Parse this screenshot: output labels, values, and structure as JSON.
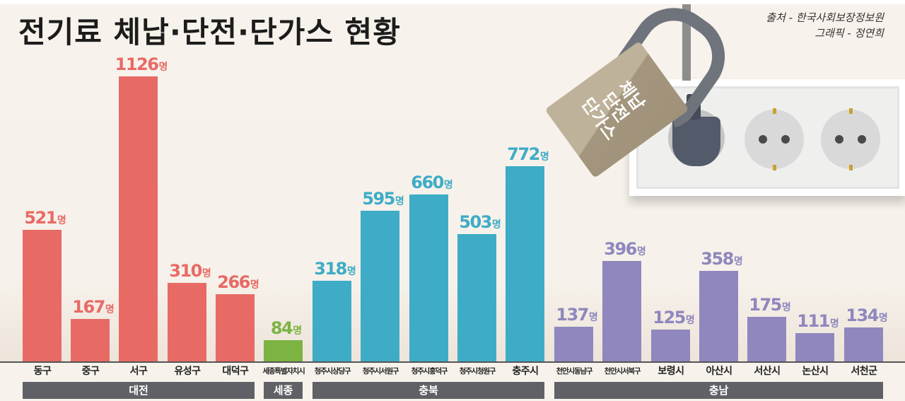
{
  "title": "전기료 체납·단전·단가스 현황",
  "credits": {
    "source": "출처 - 한국사회보장정보원",
    "graphic": "그래픽 - 정연희"
  },
  "illustration": {
    "lock_label": [
      "체납",
      "단전",
      "단가스"
    ]
  },
  "unit": "명",
  "colors": {
    "daejeon": "#e86a65",
    "sejong": "#7cb342",
    "chungbuk": "#3eacc6",
    "chungnam": "#8f87bd",
    "group_band": "#5f6166",
    "background": "#f7f2ec"
  },
  "groups": [
    {
      "name": "대전",
      "color_key": "daejeon"
    },
    {
      "name": "세종",
      "color_key": "sejong"
    },
    {
      "name": "충북",
      "color_key": "chungbuk"
    },
    {
      "name": "충남",
      "color_key": "chungnam"
    }
  ],
  "chart_data": {
    "type": "bar",
    "title": "전기료 체납·단전·단가스 현황",
    "xlabel": "",
    "ylabel": "명",
    "ylim": [
      0,
      1200
    ],
    "grid": false,
    "legend": "group bands below x-axis (대전, 세종, 충북, 충남)",
    "categories": [
      "동구",
      "중구",
      "서구",
      "유성구",
      "대덕구",
      "세종특별자치시",
      "청주시상당구",
      "청주시서원구",
      "청주시흥덕구",
      "청주시청원구",
      "충주시",
      "천안시동남구",
      "천안시서북구",
      "보령시",
      "아산시",
      "서산시",
      "논산시",
      "서천군"
    ],
    "values": [
      521,
      167,
      1126,
      310,
      266,
      84,
      318,
      595,
      660,
      503,
      772,
      137,
      396,
      125,
      358,
      175,
      111,
      134
    ],
    "series": [
      {
        "name": "대전",
        "categories": [
          "동구",
          "중구",
          "서구",
          "유성구",
          "대덕구"
        ],
        "values": [
          521,
          167,
          1126,
          310,
          266
        ]
      },
      {
        "name": "세종",
        "categories": [
          "세종특별자치시"
        ],
        "values": [
          84
        ]
      },
      {
        "name": "충북",
        "categories": [
          "청주시상당구",
          "청주시서원구",
          "청주시흥덕구",
          "청주시청원구",
          "충주시"
        ],
        "values": [
          318,
          595,
          660,
          503,
          772
        ]
      },
      {
        "name": "충남",
        "categories": [
          "천안시동남구",
          "천안시서북구",
          "보령시",
          "아산시",
          "서산시",
          "논산시",
          "서천군"
        ],
        "values": [
          137,
          396,
          125,
          358,
          175,
          111,
          134
        ]
      }
    ],
    "value_labels": [
      "521명",
      "167명",
      "1126명",
      "310명",
      "266명",
      "84명",
      "318명",
      "595명",
      "660명",
      "503명",
      "772명",
      "137명",
      "396명",
      "125명",
      "358명",
      "175명",
      "111명",
      "134명"
    ]
  },
  "bars": [
    {
      "category": "동구",
      "value": "521",
      "group": "daejeon"
    },
    {
      "category": "중구",
      "value": "167",
      "group": "daejeon"
    },
    {
      "category": "서구",
      "value": "1126",
      "group": "daejeon"
    },
    {
      "category": "유성구",
      "value": "310",
      "group": "daejeon"
    },
    {
      "category": "대덕구",
      "value": "266",
      "group": "daejeon"
    },
    {
      "category": "세종특별자치시",
      "value": "84",
      "group": "sejong"
    },
    {
      "category": "청주시상당구",
      "value": "318",
      "group": "chungbuk"
    },
    {
      "category": "청주시서원구",
      "value": "595",
      "group": "chungbuk"
    },
    {
      "category": "청주시흥덕구",
      "value": "660",
      "group": "chungbuk"
    },
    {
      "category": "청주시청원구",
      "value": "503",
      "group": "chungbuk"
    },
    {
      "category": "충주시",
      "value": "772",
      "group": "chungbuk"
    },
    {
      "category": "천안시동남구",
      "value": "137",
      "group": "chungnam"
    },
    {
      "category": "천안시서북구",
      "value": "396",
      "group": "chungnam"
    },
    {
      "category": "보령시",
      "value": "125",
      "group": "chungnam"
    },
    {
      "category": "아산시",
      "value": "358",
      "group": "chungnam"
    },
    {
      "category": "서산시",
      "value": "175",
      "group": "chungnam"
    },
    {
      "category": "논산시",
      "value": "111",
      "group": "chungnam"
    },
    {
      "category": "서천군",
      "value": "134",
      "group": "chungnam"
    }
  ]
}
